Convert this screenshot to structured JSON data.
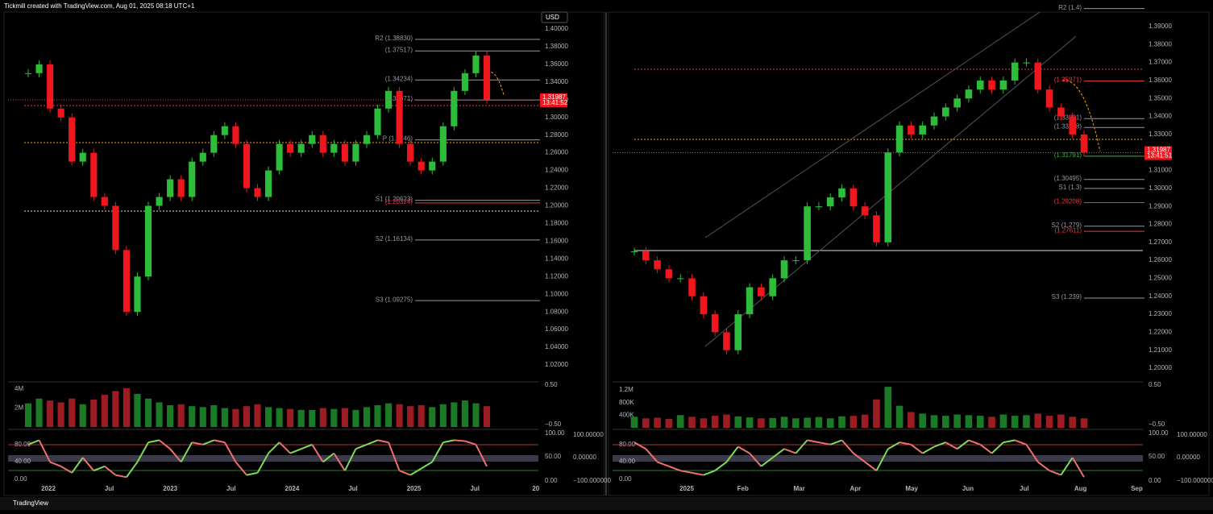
{
  "header": {
    "title": "Tickmill created with TradingView.com, Aug 01, 2025 08:18 UTC+1",
    "currency": "USD"
  },
  "footer": {
    "brand": "TradingView"
  },
  "panels": [
    {
      "price_ticks": [
        "1.40000",
        "1.38000",
        "1.36000",
        "1.34000",
        "1.32000",
        "1.30000",
        "1.28000",
        "1.26000",
        "1.24000",
        "1.22000",
        "1.20000",
        "1.18000",
        "1.16000",
        "1.14000",
        "1.12000",
        "1.10000",
        "1.08000",
        "1.06000",
        "1.04000",
        "1.02000"
      ],
      "dates": [
        "2022",
        "Jul",
        "2023",
        "Jul",
        "2024",
        "Jul",
        "2025",
        "Jul",
        "20"
      ],
      "pivots": [
        {
          "label": "R2 (1.38830)",
          "level": 1.3883,
          "color": "#9598a1"
        },
        {
          "label": "(1.37517)",
          "level": 1.37517,
          "color": "#9598a1"
        },
        {
          "label": "(1.34234)",
          "level": 1.34234,
          "color": "#9598a1"
        },
        {
          "label": "(1.31971)",
          "level": 1.31971,
          "color": "#9598a1"
        },
        {
          "label": "P (1.2746)",
          "level": 1.2746,
          "color": "#9598a1"
        },
        {
          "label": "S1 (1.20623)",
          "level": 1.20623,
          "color": "#9598a1"
        },
        {
          "label": "(1.20324)",
          "level": 1.20324,
          "color": "#f23645"
        },
        {
          "label": "S2 (1.16134)",
          "level": 1.16134,
          "color": "#9598a1"
        },
        {
          "label": "S3 (1.09275)",
          "level": 1.09275,
          "color": "#9598a1"
        }
      ],
      "price_tag": {
        "price": "1.31987",
        "time": "13:41:52",
        "level": 1.31987
      },
      "closes": [
        1.35,
        1.36,
        1.31,
        1.3,
        1.25,
        1.26,
        1.21,
        1.2,
        1.15,
        1.08,
        1.12,
        1.2,
        1.21,
        1.23,
        1.21,
        1.25,
        1.26,
        1.28,
        1.29,
        1.27,
        1.22,
        1.21,
        1.24,
        1.27,
        1.26,
        1.27,
        1.28,
        1.26,
        1.27,
        1.25,
        1.27,
        1.28,
        1.31,
        1.33,
        1.27,
        1.25,
        1.24,
        1.25,
        1.29,
        1.33,
        1.35,
        1.37,
        1.32
      ],
      "volume_ticks": [
        "4M",
        "2M"
      ],
      "volume_scale": [
        4
      ],
      "volumes": [
        2.5,
        3,
        2.8,
        2.6,
        3,
        2.4,
        2.9,
        3.4,
        3.8,
        4.1,
        3.5,
        3,
        2.6,
        2.3,
        2.4,
        2.2,
        2.1,
        2.3,
        2,
        1.9,
        2.2,
        2.4,
        2.1,
        2,
        1.9,
        1.8,
        1.8,
        2,
        1.9,
        2,
        1.8,
        2.1,
        2.3,
        2.5,
        2.4,
        2.2,
        2.3,
        2.1,
        2.4,
        2.6,
        2.8,
        2.5,
        2.2
      ],
      "osc_ticks": [
        "80.00",
        "40.00",
        "0.00"
      ],
      "osc_right_ticks": [
        "100.00000",
        "0.00000",
        "−100.000000"
      ],
      "osc_right2_ticks": [
        "100.00",
        "50.00",
        "0.00"
      ],
      "vol_right_ticks": [
        "0.50",
        "−0.50"
      ],
      "osc": [
        80,
        90,
        40,
        30,
        15,
        50,
        20,
        30,
        10,
        5,
        40,
        85,
        90,
        70,
        40,
        85,
        80,
        90,
        85,
        40,
        10,
        15,
        60,
        85,
        60,
        70,
        80,
        40,
        60,
        20,
        70,
        80,
        90,
        85,
        20,
        10,
        25,
        40,
        85,
        90,
        88,
        80,
        30
      ]
    },
    {
      "price_ticks": [
        "1.39000",
        "1.38000",
        "1.37000",
        "1.36000",
        "1.35000",
        "1.34000",
        "1.33000",
        "1.32000",
        "1.31000",
        "1.30000",
        "1.29000",
        "1.28000",
        "1.27000",
        "1.26000",
        "1.25000",
        "1.24000",
        "1.23000",
        "1.22000",
        "1.21000",
        "1.20000"
      ],
      "dates": [
        "2025",
        "Feb",
        "Mar",
        "Apr",
        "May",
        "Jun",
        "Jul",
        "Aug",
        "Sep"
      ],
      "pivots": [
        {
          "label": "R2 (1.4)",
          "level": 1.4,
          "color": "#9598a1"
        },
        {
          "label": "(1.35971)",
          "level": 1.35971,
          "color": "#f23645"
        },
        {
          "label": "(1.33881)",
          "level": 1.33881,
          "color": "#9598a1"
        },
        {
          "label": "(1.33388)",
          "level": 1.33388,
          "color": "#9598a1"
        },
        {
          "label": "(1.31791)",
          "level": 1.31791,
          "color": "#2ebd3a"
        },
        {
          "label": "(1.30495)",
          "level": 1.30495,
          "color": "#9598a1"
        },
        {
          "label": "S1 (1.3)",
          "level": 1.3,
          "color": "#9598a1"
        },
        {
          "label": "(1.29208)",
          "level": 1.29208,
          "color": "#f23645"
        },
        {
          "label": "S2 (1.279)",
          "level": 1.279,
          "color": "#9598a1"
        },
        {
          "label": "(1.27611)",
          "level": 1.27611,
          "color": "#f23645"
        },
        {
          "label": "S3 (1.239)",
          "level": 1.239,
          "color": "#9598a1"
        }
      ],
      "price_tag": {
        "price": "1.31987",
        "time": "13:41:51",
        "level": 1.31987
      },
      "closes": [
        1.265,
        1.26,
        1.255,
        1.25,
        1.25,
        1.24,
        1.23,
        1.22,
        1.21,
        1.23,
        1.245,
        1.24,
        1.25,
        1.26,
        1.26,
        1.29,
        1.29,
        1.295,
        1.3,
        1.29,
        1.285,
        1.27,
        1.32,
        1.335,
        1.33,
        1.335,
        1.34,
        1.345,
        1.35,
        1.355,
        1.36,
        1.355,
        1.36,
        1.37,
        1.37,
        1.355,
        1.345,
        1.34,
        1.33,
        1.32
      ],
      "volume_ticks": [
        "1.2M",
        "800K",
        "400K"
      ],
      "volume_scale": [
        1200
      ],
      "volumes": [
        350,
        300,
        320,
        280,
        400,
        350,
        300,
        380,
        420,
        360,
        330,
        300,
        310,
        350,
        300,
        320,
        340,
        300,
        360,
        380,
        420,
        900,
        1300,
        700,
        500,
        450,
        400,
        380,
        420,
        400,
        380,
        350,
        420,
        380,
        400,
        450,
        380,
        420,
        350,
        300
      ],
      "osc_ticks": [
        "80.00",
        "40.00",
        "0.00"
      ],
      "osc_right_ticks": [
        "100.00000",
        "0.00000",
        "−100.000000"
      ],
      "osc_right2_ticks": [
        "100.00",
        "50.00",
        "0.00"
      ],
      "vol_right_ticks": [
        "0.50",
        "−0.50"
      ],
      "osc": [
        85,
        70,
        40,
        30,
        20,
        15,
        10,
        20,
        40,
        75,
        60,
        30,
        50,
        70,
        60,
        90,
        85,
        80,
        90,
        60,
        40,
        20,
        70,
        85,
        80,
        60,
        75,
        85,
        70,
        90,
        80,
        60,
        85,
        90,
        80,
        40,
        20,
        10,
        50,
        5
      ]
    }
  ]
}
